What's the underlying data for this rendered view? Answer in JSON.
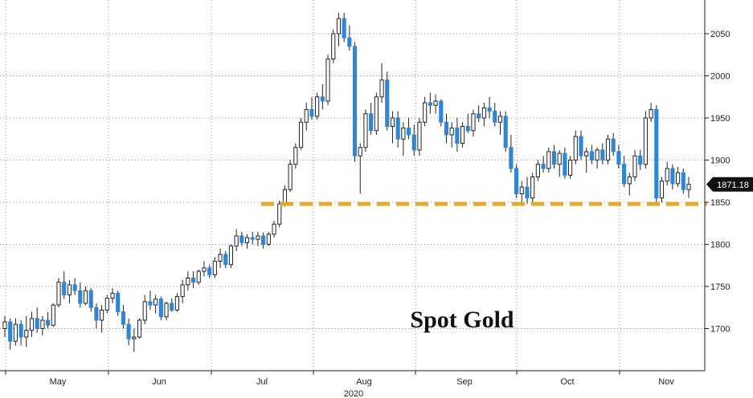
{
  "chart_data": {
    "type": "candlestick",
    "title": "Spot Gold",
    "x_tick_labels": [
      "May",
      "Jun",
      "Jul",
      "Aug",
      "Sep",
      "Oct",
      "Nov"
    ],
    "year_label": "2020",
    "y_tick_labels": [
      "1700",
      "1750",
      "1800",
      "1850",
      "1900",
      "1950",
      "2000",
      "2050"
    ],
    "ylim": [
      1650,
      2090
    ],
    "grid": true,
    "last_price_label": "1871.18",
    "last_price": 1871.18,
    "support_level": 1848,
    "colors": {
      "up_candle": "#ffffff",
      "down_candle": "#2e86d6",
      "wick": "#222222",
      "grid": "#888888",
      "support_line": "#e6a82e",
      "price_tag": "#111111"
    },
    "candles": [
      [
        1700,
        1715,
        1690,
        1708
      ],
      [
        1708,
        1712,
        1675,
        1685
      ],
      [
        1685,
        1712,
        1680,
        1705
      ],
      [
        1705,
        1710,
        1680,
        1690
      ],
      [
        1690,
        1715,
        1678,
        1698
      ],
      [
        1698,
        1720,
        1690,
        1712
      ],
      [
        1712,
        1725,
        1695,
        1700
      ],
      [
        1700,
        1715,
        1692,
        1710
      ],
      [
        1710,
        1720,
        1700,
        1704
      ],
      [
        1704,
        1730,
        1702,
        1728
      ],
      [
        1728,
        1760,
        1725,
        1755
      ],
      [
        1755,
        1768,
        1735,
        1740
      ],
      [
        1740,
        1758,
        1730,
        1752
      ],
      [
        1752,
        1760,
        1740,
        1745
      ],
      [
        1745,
        1755,
        1725,
        1730
      ],
      [
        1730,
        1750,
        1728,
        1745
      ],
      [
        1745,
        1748,
        1720,
        1725
      ],
      [
        1725,
        1730,
        1700,
        1710
      ],
      [
        1710,
        1728,
        1695,
        1722
      ],
      [
        1722,
        1740,
        1718,
        1736
      ],
      [
        1736,
        1748,
        1730,
        1742
      ],
      [
        1742,
        1745,
        1715,
        1720
      ],
      [
        1720,
        1728,
        1700,
        1705
      ],
      [
        1705,
        1712,
        1680,
        1688
      ],
      [
        1688,
        1700,
        1672,
        1690
      ],
      [
        1690,
        1712,
        1688,
        1710
      ],
      [
        1710,
        1740,
        1705,
        1732
      ],
      [
        1732,
        1745,
        1722,
        1728
      ],
      [
        1728,
        1740,
        1718,
        1735
      ],
      [
        1735,
        1738,
        1710,
        1714
      ],
      [
        1714,
        1732,
        1710,
        1730
      ],
      [
        1730,
        1736,
        1720,
        1722
      ],
      [
        1722,
        1742,
        1720,
        1738
      ],
      [
        1738,
        1758,
        1730,
        1752
      ],
      [
        1752,
        1768,
        1745,
        1760
      ],
      [
        1760,
        1768,
        1748,
        1755
      ],
      [
        1755,
        1770,
        1752,
        1768
      ],
      [
        1768,
        1780,
        1762,
        1772
      ],
      [
        1772,
        1776,
        1760,
        1764
      ],
      [
        1764,
        1785,
        1760,
        1780
      ],
      [
        1780,
        1795,
        1772,
        1788
      ],
      [
        1788,
        1792,
        1772,
        1776
      ],
      [
        1776,
        1800,
        1772,
        1798
      ],
      [
        1798,
        1818,
        1792,
        1810
      ],
      [
        1810,
        1815,
        1798,
        1802
      ],
      [
        1802,
        1812,
        1795,
        1808
      ],
      [
        1808,
        1815,
        1800,
        1806
      ],
      [
        1806,
        1815,
        1798,
        1810
      ],
      [
        1810,
        1814,
        1795,
        1800
      ],
      [
        1800,
        1815,
        1798,
        1812
      ],
      [
        1812,
        1828,
        1808,
        1824
      ],
      [
        1824,
        1852,
        1820,
        1848
      ],
      [
        1848,
        1870,
        1845,
        1865
      ],
      [
        1865,
        1900,
        1862,
        1895
      ],
      [
        1895,
        1920,
        1890,
        1915
      ],
      [
        1915,
        1950,
        1912,
        1945
      ],
      [
        1945,
        1968,
        1935,
        1960
      ],
      [
        1960,
        1975,
        1948,
        1952
      ],
      [
        1952,
        1980,
        1948,
        1975
      ],
      [
        1975,
        1990,
        1960,
        1970
      ],
      [
        1970,
        2025,
        1965,
        2020
      ],
      [
        2020,
        2055,
        2015,
        2050
      ],
      [
        2050,
        2075,
        2035,
        2068
      ],
      [
        2068,
        2075,
        2040,
        2045
      ],
      [
        2045,
        2060,
        2030,
        2035
      ],
      [
        2035,
        2040,
        1898,
        1905
      ],
      [
        1905,
        1920,
        1860,
        1915
      ],
      [
        1915,
        1960,
        1910,
        1955
      ],
      [
        1955,
        1968,
        1930,
        1935
      ],
      [
        1935,
        1980,
        1930,
        1975
      ],
      [
        1975,
        2015,
        1968,
        1995
      ],
      [
        1995,
        2005,
        1935,
        1940
      ],
      [
        1940,
        1958,
        1920,
        1950
      ],
      [
        1950,
        1958,
        1915,
        1925
      ],
      [
        1925,
        1945,
        1905,
        1938
      ],
      [
        1938,
        1950,
        1925,
        1930
      ],
      [
        1930,
        1942,
        1905,
        1912
      ],
      [
        1912,
        1950,
        1905,
        1945
      ],
      [
        1945,
        1975,
        1940,
        1968
      ],
      [
        1968,
        1980,
        1955,
        1965
      ],
      [
        1965,
        1978,
        1955,
        1970
      ],
      [
        1970,
        1972,
        1940,
        1945
      ],
      [
        1945,
        1955,
        1920,
        1930
      ],
      [
        1930,
        1945,
        1915,
        1938
      ],
      [
        1938,
        1950,
        1910,
        1920
      ],
      [
        1920,
        1945,
        1915,
        1940
      ],
      [
        1940,
        1955,
        1932,
        1935
      ],
      [
        1935,
        1960,
        1928,
        1955
      ],
      [
        1955,
        1965,
        1945,
        1950
      ],
      [
        1950,
        1968,
        1940,
        1962
      ],
      [
        1962,
        1975,
        1950,
        1958
      ],
      [
        1958,
        1968,
        1940,
        1945
      ],
      [
        1945,
        1958,
        1930,
        1952
      ],
      [
        1952,
        1958,
        1910,
        1915
      ],
      [
        1915,
        1930,
        1885,
        1890
      ],
      [
        1890,
        1895,
        1855,
        1860
      ],
      [
        1860,
        1875,
        1850,
        1868
      ],
      [
        1868,
        1880,
        1848,
        1855
      ],
      [
        1855,
        1885,
        1850,
        1880
      ],
      [
        1880,
        1900,
        1875,
        1895
      ],
      [
        1895,
        1905,
        1885,
        1890
      ],
      [
        1890,
        1915,
        1885,
        1910
      ],
      [
        1910,
        1918,
        1890,
        1895
      ],
      [
        1895,
        1912,
        1880,
        1908
      ],
      [
        1908,
        1915,
        1878,
        1882
      ],
      [
        1882,
        1905,
        1878,
        1900
      ],
      [
        1900,
        1935,
        1895,
        1928
      ],
      [
        1928,
        1935,
        1900,
        1905
      ],
      [
        1905,
        1915,
        1885,
        1910
      ],
      [
        1910,
        1918,
        1895,
        1900
      ],
      [
        1900,
        1915,
        1890,
        1912
      ],
      [
        1912,
        1920,
        1895,
        1900
      ],
      [
        1900,
        1930,
        1895,
        1925
      ],
      [
        1925,
        1932,
        1905,
        1910
      ],
      [
        1910,
        1918,
        1890,
        1895
      ],
      [
        1895,
        1905,
        1868,
        1872
      ],
      [
        1872,
        1885,
        1858,
        1880
      ],
      [
        1880,
        1912,
        1875,
        1905
      ],
      [
        1905,
        1912,
        1888,
        1895
      ],
      [
        1895,
        1958,
        1890,
        1950
      ],
      [
        1950,
        1968,
        1945,
        1960
      ],
      [
        1960,
        1965,
        1850,
        1855
      ],
      [
        1855,
        1880,
        1850,
        1875
      ],
      [
        1875,
        1898,
        1870,
        1890
      ],
      [
        1890,
        1895,
        1865,
        1872
      ],
      [
        1872,
        1892,
        1868,
        1885
      ],
      [
        1885,
        1890,
        1860,
        1865
      ],
      [
        1865,
        1880,
        1855,
        1871.18
      ]
    ]
  }
}
